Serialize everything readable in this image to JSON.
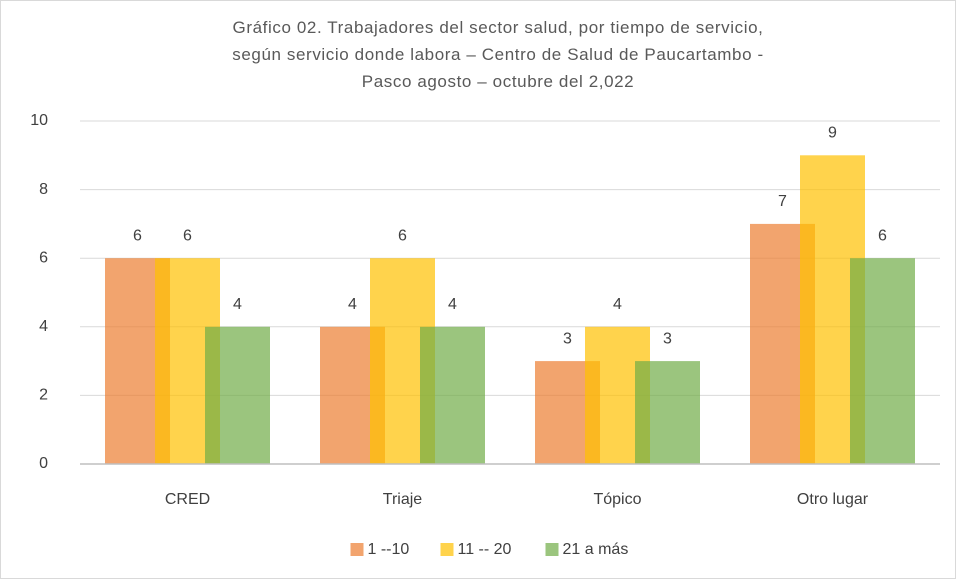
{
  "chart_data": {
    "type": "bar",
    "title": "Gráfico 02. Trabajadores del sector salud, por tiempo de servicio, según servicio donde labora – Centro de Salud de Paucartambo - Pasco agosto – octubre del 2,022",
    "categories": [
      "CRED",
      "Triaje",
      "Tópico",
      "Otro lugar"
    ],
    "series": [
      {
        "name": "1 --10",
        "color": "#ED7D31",
        "values": [
          6,
          4,
          3,
          7
        ]
      },
      {
        "name": "11 -- 20",
        "color": "#FFC000",
        "values": [
          6,
          6,
          4,
          9
        ]
      },
      {
        "name": "21 a más",
        "color": "#70AD47",
        "values": [
          4,
          4,
          3,
          6
        ]
      }
    ],
    "ylim": [
      0,
      10
    ],
    "yticks": [
      0,
      2,
      4,
      6,
      8,
      10
    ],
    "grid": true,
    "legend": "bottom"
  }
}
